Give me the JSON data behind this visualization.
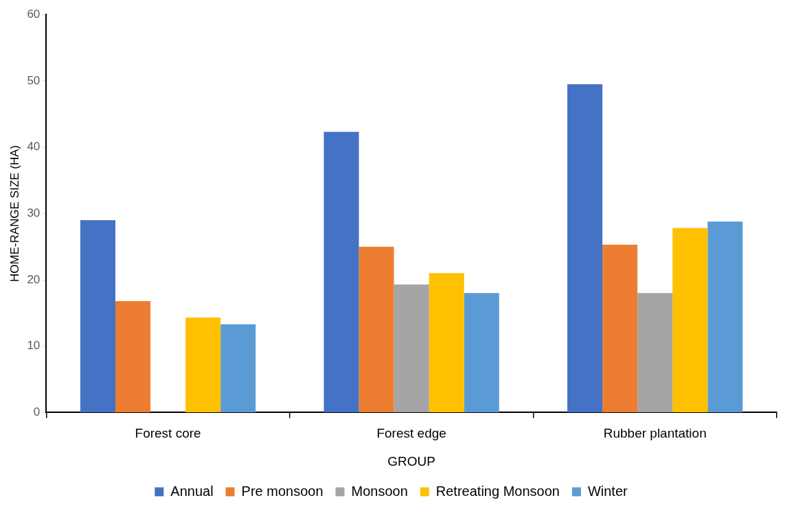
{
  "chart_data": {
    "type": "bar",
    "xlabel": "GROUP",
    "ylabel": "HOME-RANGE SIZE (HA)",
    "categories": [
      "Forest core",
      "Forest edge",
      "Rubber plantation"
    ],
    "series": [
      {
        "name": "Annual",
        "color": "#4472c4",
        "values": [
          29.0,
          42.3,
          49.5
        ]
      },
      {
        "name": "Pre monsoon",
        "color": "#ed7d31",
        "values": [
          16.8,
          25.0,
          25.3
        ]
      },
      {
        "name": "Monsoon",
        "color": "#a5a5a5",
        "values": [
          null,
          19.3,
          18.0
        ]
      },
      {
        "name": "Retreating Monsoon",
        "color": "#ffc000",
        "values": [
          14.3,
          21.0,
          27.8
        ]
      },
      {
        "name": "Winter",
        "color": "#5b9bd5",
        "values": [
          13.3,
          18.0,
          28.8
        ]
      }
    ],
    "ylim": [
      0,
      60
    ],
    "yticks": [
      0,
      10,
      20,
      30,
      40,
      50,
      60
    ],
    "grid": false,
    "legend": "bottom"
  }
}
